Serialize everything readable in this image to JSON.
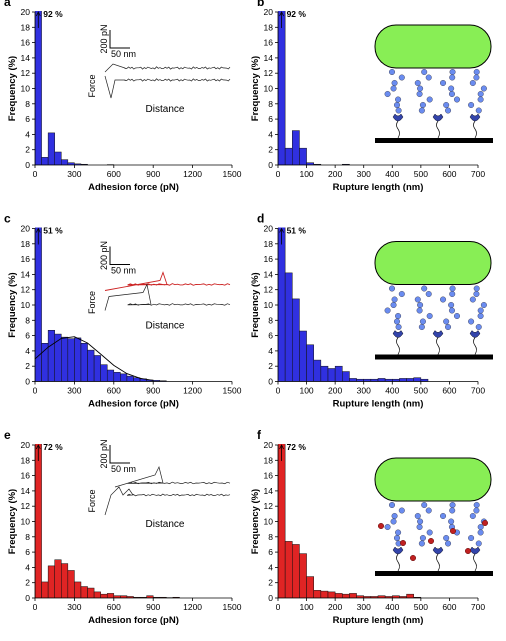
{
  "chart_data": [
    {
      "type": "histogram",
      "label": "a",
      "xlabel": "Adhesion force (pN)",
      "ylabel": "Frequency (%)",
      "color": "#3030e0",
      "bins": [
        0,
        50,
        100,
        150,
        200,
        250,
        300,
        350,
        400,
        450,
        500,
        550,
        600
      ],
      "values": [
        92,
        1.0,
        4.2,
        1.7,
        0.7,
        0.3,
        0.15,
        0.1,
        0,
        0,
        0,
        0.05
      ],
      "value_labels": [
        "92 %",
        null,
        null,
        null,
        null,
        null,
        null,
        null,
        null,
        null,
        null,
        null
      ],
      "xlim": [
        0,
        1500
      ],
      "xticks": [
        0,
        300,
        600,
        900,
        1200,
        1500
      ],
      "ylim": [
        0,
        20
      ],
      "yticks": [
        0,
        2,
        4,
        6,
        8,
        10,
        12,
        14,
        16,
        18,
        20
      ],
      "inset": {
        "scale_y": "200 pN",
        "scale_x": "50 nm",
        "y_label": "Force",
        "x_label": "Distance"
      }
    },
    {
      "type": "histogram",
      "label": "b",
      "xlabel": "Rupture length (nm)",
      "ylabel": "Frequency (%)",
      "color": "#3030e0",
      "bins": [
        0,
        25,
        50,
        75,
        100,
        125,
        150,
        175,
        200,
        225,
        250
      ],
      "values": [
        92,
        2.2,
        4.5,
        2.2,
        0.3,
        0.1,
        0,
        0,
        0,
        0.1
      ],
      "value_labels": [
        "92 %",
        null,
        null,
        null,
        null,
        null,
        null,
        null,
        null,
        null
      ],
      "xlim": [
        0,
        700
      ],
      "xticks": [
        0,
        100,
        200,
        300,
        400,
        500,
        600,
        700
      ],
      "ylim": [
        0,
        20
      ],
      "yticks": [
        0,
        2,
        4,
        6,
        8,
        10,
        12,
        14,
        16,
        18,
        20
      ]
    },
    {
      "type": "histogram",
      "label": "c",
      "xlabel": "Adhesion force (pN)",
      "ylabel": "Frequency (%)",
      "color": "#3030e0",
      "bins": [
        0,
        50,
        100,
        150,
        200,
        250,
        300,
        350,
        400,
        450,
        500,
        550,
        600,
        650,
        700,
        750,
        800,
        850,
        900,
        950,
        1000
      ],
      "values": [
        51,
        5.0,
        6.7,
        6.2,
        5.8,
        5.6,
        5.7,
        5.0,
        4.1,
        3.4,
        2.2,
        1.5,
        1.2,
        1.0,
        0.7,
        0.5,
        0.35,
        0.2,
        0.15,
        0.1
      ],
      "value_labels": [
        "51 %",
        null,
        null,
        null,
        null,
        null,
        null,
        null,
        null,
        null,
        null,
        null,
        null,
        null,
        null,
        null,
        null,
        null,
        null,
        null
      ],
      "fit": {
        "x": [
          0,
          100,
          200,
          300,
          400,
          500,
          600,
          700,
          800,
          900
        ],
        "values": [
          2.96,
          4.49,
          5.63,
          5.85,
          5.03,
          3.58,
          2.11,
          1.03,
          0.42,
          0.14
        ]
      },
      "xlim": [
        0,
        1500
      ],
      "xticks": [
        0,
        300,
        600,
        900,
        1200,
        1500
      ],
      "ylim": [
        0,
        20
      ],
      "yticks": [
        0,
        2,
        4,
        6,
        8,
        10,
        12,
        14,
        16,
        18,
        20
      ],
      "inset": {
        "scale_y": "200 pN",
        "scale_x": "50 nm",
        "y_label": "Force",
        "x_label": "Distance"
      }
    },
    {
      "type": "histogram",
      "label": "d",
      "xlabel": "Rupture length (nm)",
      "ylabel": "Frequency (%)",
      "color": "#3030e0",
      "bins": [
        0,
        25,
        50,
        75,
        100,
        125,
        150,
        175,
        200,
        225,
        250,
        275,
        300,
        325,
        350,
        375,
        400,
        425,
        450,
        475,
        500,
        525
      ],
      "values": [
        51,
        14.2,
        10.8,
        6.6,
        4.8,
        2.8,
        2.0,
        1.7,
        2.0,
        1.3,
        0.4,
        0.3,
        0.3,
        0.3,
        0.4,
        0.3,
        0.3,
        0.4,
        0.4,
        0.5,
        0.3
      ],
      "value_labels": [
        "51 %",
        null,
        null,
        null,
        null,
        null,
        null,
        null,
        null,
        null,
        null,
        null,
        null,
        null,
        null,
        null,
        null,
        null,
        null,
        null,
        null
      ],
      "xlim": [
        0,
        700
      ],
      "xticks": [
        0,
        100,
        200,
        300,
        400,
        500,
        600,
        700
      ],
      "ylim": [
        0,
        20
      ],
      "yticks": [
        0,
        2,
        4,
        6,
        8,
        10,
        12,
        14,
        16,
        18,
        20
      ]
    },
    {
      "type": "histogram",
      "label": "e",
      "xlabel": "Adhesion force (pN)",
      "ylabel": "Frequency (%)",
      "color": "#e02424",
      "bins": [
        0,
        50,
        100,
        150,
        200,
        250,
        300,
        350,
        400,
        450,
        500,
        550,
        600,
        650,
        700,
        750,
        800,
        850,
        900,
        950,
        1000,
        1050,
        1100
      ],
      "values": [
        72,
        2.1,
        4.2,
        5.0,
        4.5,
        3.6,
        2.1,
        1.5,
        1.3,
        0.8,
        0.5,
        0.6,
        0.3,
        0.3,
        0.2,
        0.1,
        0.1,
        0.3,
        0.1,
        0.1,
        0.05,
        0.1
      ],
      "value_labels": [
        "72 %",
        null,
        null,
        null,
        null,
        null,
        null,
        null,
        null,
        null,
        null,
        null,
        null,
        null,
        null,
        null,
        null,
        null,
        null,
        null,
        null,
        null
      ],
      "xlim": [
        0,
        1500
      ],
      "xticks": [
        0,
        300,
        600,
        900,
        1200,
        1500
      ],
      "ylim": [
        0,
        20
      ],
      "yticks": [
        0,
        2,
        4,
        6,
        8,
        10,
        12,
        14,
        16,
        18,
        20
      ],
      "inset": {
        "scale_y": "200 pN",
        "scale_x": "50 nm",
        "y_label": "Force",
        "x_label": "Distance"
      }
    },
    {
      "type": "histogram",
      "label": "f",
      "xlabel": "Rupture length (nm)",
      "ylabel": "Frequency (%)",
      "color": "#e02424",
      "bins": [
        0,
        25,
        50,
        75,
        100,
        125,
        150,
        175,
        200,
        225,
        250,
        275,
        300,
        325,
        350,
        375,
        400,
        425,
        450,
        475,
        500
      ],
      "values": [
        72,
        7.4,
        7.0,
        5.8,
        2.8,
        1.0,
        0.9,
        0.8,
        0.6,
        0.5,
        0.6,
        0.3,
        0.2,
        0.2,
        0.3,
        0.2,
        0.3,
        0.2,
        0.5,
        0.1
      ],
      "value_labels": [
        "72 %",
        null,
        null,
        null,
        null,
        null,
        null,
        null,
        null,
        null,
        null,
        null,
        null,
        null,
        null,
        null,
        null,
        null,
        null,
        null
      ],
      "xlim": [
        0,
        700
      ],
      "xticks": [
        0,
        100,
        200,
        300,
        400,
        500,
        600,
        700
      ],
      "ylim": [
        0,
        20
      ],
      "yticks": [
        0,
        2,
        4,
        6,
        8,
        10,
        12,
        14,
        16,
        18,
        20
      ]
    }
  ]
}
